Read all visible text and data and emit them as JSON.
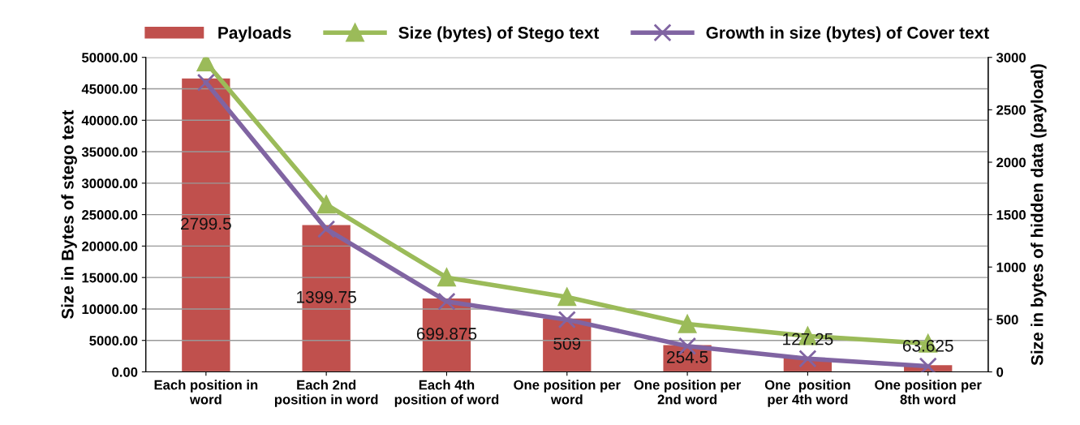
{
  "chart_data": {
    "type": "bar",
    "categories": [
      "Each position in\nword",
      "Each 2nd\nposition in word",
      "Each 4th\nposition of word",
      "One position per\nword",
      "One position per\n2nd word",
      "One  position\nper 4th word",
      "One position per\n8th word"
    ],
    "ylabel": "Size in Bytes of stego text",
    "y2label": "Size in bytes of hidden data (payload)",
    "ylim": [
      0,
      50000
    ],
    "yticks": [
      {
        "value": 0,
        "label": "0.00"
      },
      {
        "value": 5000,
        "label": "5000.00"
      },
      {
        "value": 10000,
        "label": "10000.00"
      },
      {
        "value": 15000,
        "label": "15000.00"
      },
      {
        "value": 20000,
        "label": "20000.00"
      },
      {
        "value": 25000,
        "label": "25000.00"
      },
      {
        "value": 30000,
        "label": "30000.00"
      },
      {
        "value": 35000,
        "label": "35000.00"
      },
      {
        "value": 40000,
        "label": "40000.00"
      },
      {
        "value": 45000,
        "label": "45000.00"
      },
      {
        "value": 50000,
        "label": "50000.00"
      }
    ],
    "y2lim": [
      0,
      3000
    ],
    "y2ticks": [
      0,
      500,
      1000,
      1500,
      2000,
      2500,
      3000
    ],
    "grid": "y",
    "legend": "top",
    "series": [
      {
        "name": "Payloads",
        "axis": "y2",
        "color": "#c0504d",
        "values": [
          2799.5,
          1399.75,
          699.875,
          509,
          254.5,
          127.25,
          63.625
        ],
        "data_labels": true
      },
      {
        "name": "Size (bytes) of Stego text",
        "type": "line",
        "color": "#9bbb59",
        "marker": "triangle",
        "values": [
          49200,
          26600,
          15000,
          11900,
          7600,
          5700,
          4500
        ]
      },
      {
        "name": "Growth in size (bytes) of Cover text",
        "type": "line",
        "color": "#8064a2",
        "marker": "cross",
        "values": [
          46000,
          22700,
          11200,
          8300,
          4100,
          2100,
          900
        ]
      }
    ]
  }
}
